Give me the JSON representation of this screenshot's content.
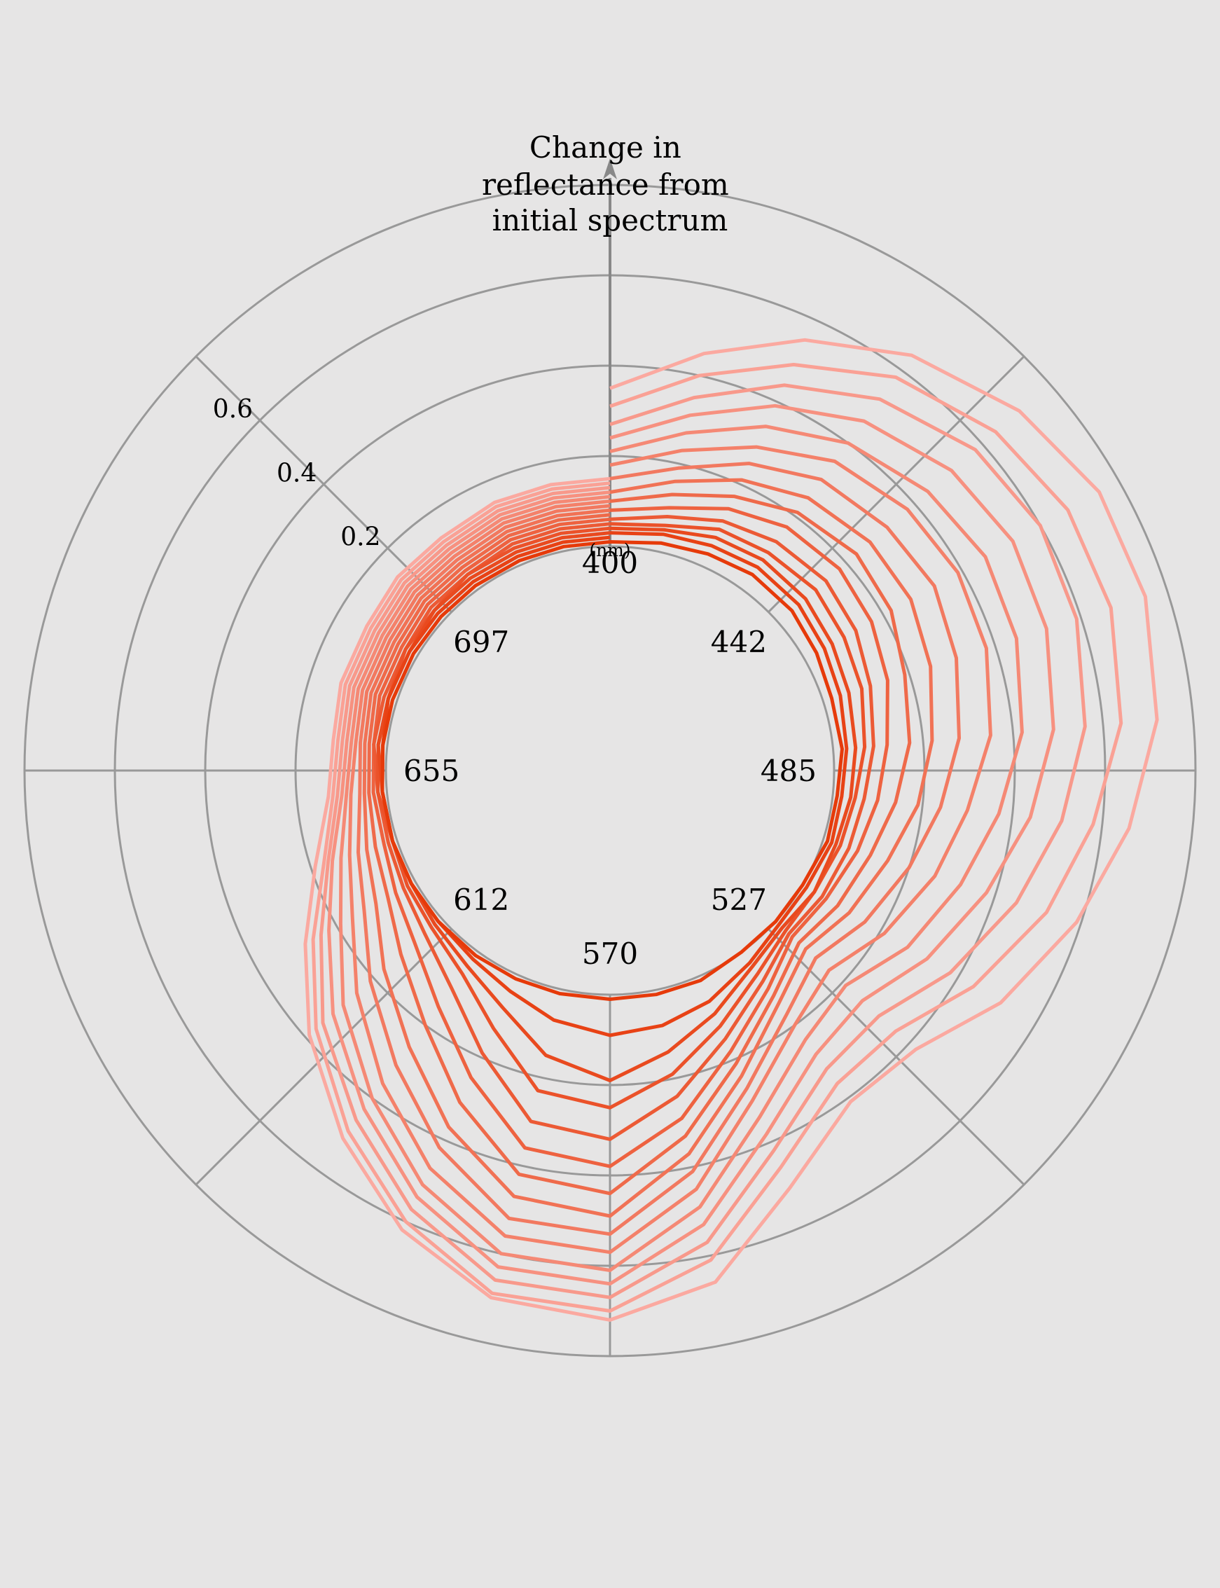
{
  "chart_data": {
    "type": "radar",
    "title": [
      "Change in",
      "reflectance from",
      "initial spectrum"
    ],
    "angle_axis": {
      "unit": "(nm)",
      "tick_labels": [
        "400",
        "442",
        "485",
        "527",
        "570",
        "612",
        "655",
        "697"
      ],
      "range": [
        400,
        740
      ]
    },
    "radial_axis": {
      "baseline": 0.0,
      "ticks": [
        0.2,
        0.4,
        0.6
      ],
      "tick_labels": [
        "0.2",
        "0.4",
        "0.6"
      ],
      "max": 0.8
    },
    "grid": true,
    "wavelengths": [
      400,
      412,
      423,
      434,
      446,
      457,
      468,
      480,
      491,
      502,
      514,
      525,
      536,
      548,
      559,
      570,
      582,
      593,
      604,
      616,
      627,
      638,
      650,
      661,
      672,
      684,
      695,
      706,
      718,
      729,
      740
    ],
    "series": [
      {
        "values": [
          0.01,
          0.02,
          0.03,
          0.04,
          0.04,
          0.03,
          0.02,
          0.02,
          0.01,
          0.01,
          0.0,
          0.0,
          0.0,
          0.01,
          0.01,
          0.01,
          0.01,
          0.01,
          0.01,
          0.01,
          0.01,
          0.01,
          0.01,
          0.01,
          0.01,
          0.01,
          0.01,
          0.01,
          0.01,
          0.01,
          0.01
        ]
      },
      {
        "values": [
          0.03,
          0.04,
          0.05,
          0.06,
          0.06,
          0.05,
          0.04,
          0.03,
          0.02,
          0.02,
          0.01,
          0.01,
          0.03,
          0.06,
          0.08,
          0.09,
          0.07,
          0.04,
          0.02,
          0.01,
          0.01,
          0.01,
          0.01,
          0.01,
          0.02,
          0.02,
          0.02,
          0.02,
          0.02,
          0.02,
          0.02
        ]
      },
      {
        "values": [
          0.04,
          0.05,
          0.07,
          0.08,
          0.08,
          0.07,
          0.06,
          0.05,
          0.04,
          0.03,
          0.03,
          0.02,
          0.04,
          0.09,
          0.14,
          0.19,
          0.15,
          0.08,
          0.04,
          0.02,
          0.01,
          0.01,
          0.01,
          0.02,
          0.02,
          0.02,
          0.03,
          0.03,
          0.03,
          0.03,
          0.03
        ]
      },
      {
        "values": [
          0.05,
          0.06,
          0.09,
          0.1,
          0.11,
          0.1,
          0.09,
          0.07,
          0.05,
          0.04,
          0.03,
          0.03,
          0.06,
          0.12,
          0.19,
          0.25,
          0.23,
          0.13,
          0.06,
          0.03,
          0.02,
          0.01,
          0.02,
          0.02,
          0.02,
          0.03,
          0.03,
          0.04,
          0.04,
          0.04,
          0.04
        ]
      },
      {
        "values": [
          0.06,
          0.08,
          0.11,
          0.13,
          0.14,
          0.13,
          0.11,
          0.09,
          0.07,
          0.06,
          0.05,
          0.04,
          0.08,
          0.15,
          0.24,
          0.32,
          0.3,
          0.19,
          0.1,
          0.05,
          0.03,
          0.02,
          0.02,
          0.03,
          0.03,
          0.03,
          0.04,
          0.04,
          0.05,
          0.05,
          0.05
        ]
      },
      {
        "values": [
          0.08,
          0.1,
          0.14,
          0.17,
          0.18,
          0.17,
          0.15,
          0.12,
          0.1,
          0.08,
          0.06,
          0.05,
          0.1,
          0.18,
          0.29,
          0.38,
          0.36,
          0.25,
          0.15,
          0.08,
          0.05,
          0.03,
          0.03,
          0.03,
          0.04,
          0.04,
          0.05,
          0.05,
          0.06,
          0.06,
          0.06
        ]
      },
      {
        "values": [
          0.1,
          0.13,
          0.17,
          0.21,
          0.23,
          0.22,
          0.19,
          0.17,
          0.14,
          0.11,
          0.09,
          0.07,
          0.12,
          0.21,
          0.33,
          0.44,
          0.42,
          0.31,
          0.2,
          0.12,
          0.07,
          0.05,
          0.04,
          0.04,
          0.05,
          0.05,
          0.06,
          0.06,
          0.07,
          0.07,
          0.07
        ]
      },
      {
        "values": [
          0.12,
          0.16,
          0.21,
          0.25,
          0.27,
          0.27,
          0.25,
          0.22,
          0.19,
          0.15,
          0.12,
          0.09,
          0.14,
          0.24,
          0.37,
          0.49,
          0.47,
          0.37,
          0.26,
          0.17,
          0.1,
          0.07,
          0.05,
          0.05,
          0.06,
          0.06,
          0.07,
          0.07,
          0.08,
          0.08,
          0.08
        ]
      },
      {
        "values": [
          0.15,
          0.19,
          0.25,
          0.3,
          0.32,
          0.33,
          0.31,
          0.28,
          0.24,
          0.2,
          0.16,
          0.12,
          0.17,
          0.27,
          0.41,
          0.53,
          0.52,
          0.42,
          0.31,
          0.21,
          0.13,
          0.09,
          0.06,
          0.06,
          0.07,
          0.07,
          0.08,
          0.08,
          0.09,
          0.09,
          0.09
        ]
      },
      {
        "values": [
          0.18,
          0.23,
          0.29,
          0.35,
          0.38,
          0.39,
          0.38,
          0.35,
          0.3,
          0.26,
          0.21,
          0.16,
          0.2,
          0.3,
          0.45,
          0.57,
          0.56,
          0.47,
          0.36,
          0.25,
          0.16,
          0.11,
          0.08,
          0.07,
          0.08,
          0.08,
          0.09,
          0.09,
          0.1,
          0.1,
          0.1
        ]
      },
      {
        "values": [
          0.21,
          0.27,
          0.34,
          0.4,
          0.44,
          0.46,
          0.45,
          0.42,
          0.37,
          0.32,
          0.27,
          0.21,
          0.24,
          0.34,
          0.49,
          0.61,
          0.6,
          0.51,
          0.4,
          0.29,
          0.19,
          0.13,
          0.09,
          0.08,
          0.09,
          0.09,
          0.1,
          0.1,
          0.11,
          0.11,
          0.11
        ]
      },
      {
        "values": [
          0.24,
          0.31,
          0.39,
          0.46,
          0.51,
          0.53,
          0.52,
          0.49,
          0.44,
          0.38,
          0.32,
          0.26,
          0.28,
          0.38,
          0.53,
          0.64,
          0.63,
          0.54,
          0.43,
          0.32,
          0.22,
          0.15,
          0.1,
          0.09,
          0.1,
          0.1,
          0.11,
          0.11,
          0.12,
          0.12,
          0.12
        ]
      },
      {
        "values": [
          0.27,
          0.35,
          0.44,
          0.52,
          0.58,
          0.6,
          0.59,
          0.56,
          0.51,
          0.45,
          0.38,
          0.31,
          0.32,
          0.42,
          0.57,
          0.67,
          0.66,
          0.57,
          0.46,
          0.35,
          0.24,
          0.16,
          0.11,
          0.1,
          0.11,
          0.11,
          0.12,
          0.12,
          0.13,
          0.13,
          0.13
        ]
      },
      {
        "values": [
          0.31,
          0.4,
          0.49,
          0.58,
          0.64,
          0.67,
          0.67,
          0.64,
          0.58,
          0.52,
          0.44,
          0.36,
          0.36,
          0.46,
          0.61,
          0.7,
          0.69,
          0.6,
          0.49,
          0.37,
          0.26,
          0.17,
          0.12,
          0.11,
          0.12,
          0.12,
          0.13,
          0.13,
          0.14,
          0.14,
          0.14
        ]
      },
      {
        "values": [
          0.35,
          0.45,
          0.55,
          0.64,
          0.71,
          0.75,
          0.75,
          0.72,
          0.66,
          0.59,
          0.51,
          0.42,
          0.41,
          0.51,
          0.66,
          0.72,
          0.7,
          0.62,
          0.51,
          0.39,
          0.28,
          0.19,
          0.13,
          0.12,
          0.13,
          0.13,
          0.14,
          0.14,
          0.15,
          0.15,
          0.15
        ]
      }
    ],
    "colors": {
      "dark": "#e63a0a",
      "light": "#fba9a0",
      "grid": "#999999",
      "axis": "#888888",
      "background": "#e6e5e5"
    }
  }
}
